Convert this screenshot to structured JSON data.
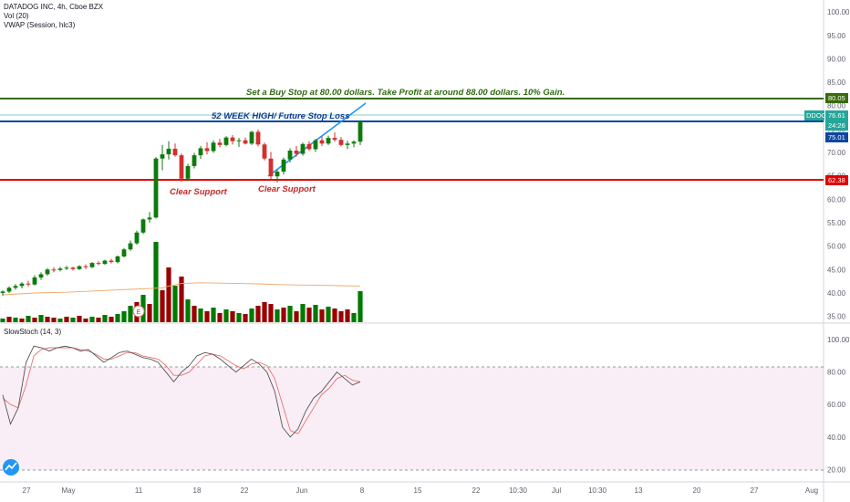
{
  "legend": {
    "title": "DATADOG INC, 4h, Cboe BZX",
    "vol": "Vol (20)",
    "vwap": "VWAP (Session, hlc3)",
    "stoch": "SlowStoch (14, 3)"
  },
  "colors": {
    "up": "#0e7a0d",
    "down": "#d32f2f",
    "up_vol": "#007a00",
    "down_vol": "#990000",
    "green_line": "#3a6b0a",
    "blue_line": "#0d47a1",
    "red_line": "#e00000",
    "trend": "#2196f3",
    "stoch_k": "#555555",
    "stoch_d": "#e57373"
  },
  "annotations": {
    "buy_stop": "Set a Buy Stop at 80.00 dollars. Take Profit at around 88.00 dollars. 10% Gain.",
    "high_52": "52 WEEK HIGH/ Future Stop Loss",
    "support_1": "Clear Support",
    "support_2": "Clear Support",
    "earnings_marker": "E"
  },
  "price_tags": {
    "green": "80.05",
    "ddog_label": "DDOG",
    "ddog_price": "76.61",
    "countdown": "24:26",
    "blue": "75.01",
    "red": "62.38"
  },
  "price_axis": [
    "100.00",
    "95.00",
    "90.00",
    "85.00",
    "80.00",
    "75.00",
    "70.00",
    "65.00",
    "60.00",
    "55.00",
    "50.00",
    "45.00",
    "40.00",
    "35.00"
  ],
  "stoch_axis": [
    "100.00",
    "80.00",
    "60.00",
    "40.00",
    "20.00"
  ],
  "x_axis": [
    "27",
    "May",
    "11",
    "18",
    "22",
    "Jun",
    "8",
    "15",
    "22",
    "10:30",
    "Jul",
    "10:30",
    "13",
    "20",
    "27",
    "Aug"
  ],
  "chart_data": {
    "type": "candlestick",
    "title": "DATADOG INC, 4h, Cboe BZX",
    "ylim": [
      32,
      101
    ],
    "levels": {
      "buy_stop": 80.05,
      "week52_high": 75.01,
      "support": 62.38,
      "last": 76.61
    },
    "trendline": [
      [
        63.5,
        75.0
      ],
      [
        80.0,
        77.0
      ]
    ],
    "candles": [
      [
        40.0,
        40.6,
        39.4,
        40.3
      ],
      [
        40.3,
        41.4,
        40.0,
        41.1
      ],
      [
        41.1,
        41.9,
        40.7,
        41.5
      ],
      [
        41.5,
        42.3,
        41.0,
        42.0
      ],
      [
        42.0,
        42.6,
        41.4,
        41.8
      ],
      [
        41.8,
        43.8,
        41.6,
        43.3
      ],
      [
        43.3,
        44.4,
        42.8,
        44.0
      ],
      [
        44.0,
        45.3,
        43.7,
        45.0
      ],
      [
        45.0,
        45.5,
        44.4,
        44.9
      ],
      [
        44.9,
        45.6,
        44.6,
        45.2
      ],
      [
        45.2,
        45.8,
        44.9,
        45.4
      ],
      [
        45.4,
        45.6,
        44.8,
        45.1
      ],
      [
        45.1,
        45.9,
        44.9,
        45.7
      ],
      [
        45.7,
        46.1,
        45.1,
        45.5
      ],
      [
        45.5,
        46.6,
        45.3,
        46.4
      ],
      [
        46.4,
        46.8,
        45.9,
        46.2
      ],
      [
        46.2,
        47.1,
        46.0,
        46.9
      ],
      [
        46.9,
        47.3,
        46.3,
        46.6
      ],
      [
        46.6,
        48.0,
        46.3,
        47.8
      ],
      [
        47.8,
        49.6,
        47.6,
        49.3
      ],
      [
        49.3,
        51.2,
        49.0,
        50.6
      ],
      [
        50.6,
        53.3,
        50.3,
        52.9
      ],
      [
        52.9,
        55.9,
        52.6,
        55.7
      ],
      [
        55.7,
        57.3,
        55.0,
        56.1
      ],
      [
        56.1,
        69.0,
        55.9,
        68.7
      ],
      [
        68.7,
        71.6,
        66.2,
        69.6
      ],
      [
        69.6,
        72.4,
        68.5,
        70.8
      ],
      [
        70.8,
        71.9,
        69.1,
        69.4
      ],
      [
        69.4,
        69.8,
        63.8,
        64.4
      ],
      [
        64.4,
        67.6,
        63.9,
        67.1
      ],
      [
        67.1,
        69.9,
        66.6,
        69.4
      ],
      [
        69.4,
        71.4,
        68.6,
        70.9
      ],
      [
        70.9,
        72.2,
        69.6,
        70.3
      ],
      [
        70.3,
        72.6,
        69.9,
        72.1
      ],
      [
        72.1,
        72.9,
        71.1,
        71.6
      ],
      [
        71.6,
        73.5,
        71.3,
        73.2
      ],
      [
        73.2,
        73.7,
        71.7,
        72.4
      ],
      [
        72.4,
        73.1,
        71.2,
        72.6
      ],
      [
        72.6,
        73.2,
        71.7,
        71.9
      ],
      [
        71.9,
        74.6,
        71.6,
        74.4
      ],
      [
        74.4,
        74.9,
        71.3,
        71.7
      ],
      [
        71.7,
        72.1,
        68.3,
        68.7
      ],
      [
        68.7,
        70.1,
        64.3,
        64.9
      ],
      [
        64.9,
        66.4,
        63.6,
        65.9
      ],
      [
        65.9,
        68.9,
        65.3,
        68.5
      ],
      [
        68.5,
        70.9,
        67.9,
        70.4
      ],
      [
        70.4,
        71.4,
        69.1,
        69.7
      ],
      [
        69.7,
        72.1,
        69.3,
        71.8
      ],
      [
        71.8,
        72.4,
        70.3,
        70.7
      ],
      [
        70.7,
        72.9,
        70.1,
        72.6
      ],
      [
        72.6,
        73.6,
        71.4,
        71.9
      ],
      [
        71.9,
        73.6,
        71.6,
        73.1
      ],
      [
        73.1,
        74.3,
        72.3,
        72.7
      ],
      [
        72.7,
        73.3,
        71.3,
        71.6
      ],
      [
        71.6,
        72.5,
        70.7,
        71.9
      ],
      [
        71.9,
        72.6,
        71.1,
        72.3
      ],
      [
        72.3,
        76.9,
        71.6,
        76.6
      ]
    ],
    "volume": [
      [
        4,
        1
      ],
      [
        6,
        0
      ],
      [
        5,
        1
      ],
      [
        4,
        0
      ],
      [
        7,
        1
      ],
      [
        5,
        0
      ],
      [
        8,
        1
      ],
      [
        6,
        0
      ],
      [
        5,
        0
      ],
      [
        4,
        1
      ],
      [
        6,
        0
      ],
      [
        5,
        1
      ],
      [
        7,
        0
      ],
      [
        4,
        0
      ],
      [
        6,
        1
      ],
      [
        5,
        0
      ],
      [
        8,
        1
      ],
      [
        6,
        0
      ],
      [
        9,
        1
      ],
      [
        12,
        1
      ],
      [
        18,
        1
      ],
      [
        22,
        0
      ],
      [
        30,
        1
      ],
      [
        20,
        0
      ],
      [
        88,
        1
      ],
      [
        35,
        0
      ],
      [
        60,
        0
      ],
      [
        40,
        1
      ],
      [
        50,
        0
      ],
      [
        25,
        1
      ],
      [
        18,
        0
      ],
      [
        15,
        1
      ],
      [
        12,
        0
      ],
      [
        16,
        1
      ],
      [
        10,
        0
      ],
      [
        14,
        1
      ],
      [
        12,
        0
      ],
      [
        10,
        1
      ],
      [
        9,
        0
      ],
      [
        15,
        1
      ],
      [
        18,
        0
      ],
      [
        22,
        0
      ],
      [
        20,
        0
      ],
      [
        14,
        1
      ],
      [
        16,
        0
      ],
      [
        18,
        1
      ],
      [
        12,
        0
      ],
      [
        20,
        1
      ],
      [
        16,
        0
      ],
      [
        19,
        1
      ],
      [
        14,
        0
      ],
      [
        17,
        1
      ],
      [
        15,
        0
      ],
      [
        12,
        0
      ],
      [
        14,
        0
      ],
      [
        10,
        1
      ],
      [
        34,
        1
      ]
    ],
    "vwap": [
      [
        0,
        42.5
      ],
      [
        5,
        43.0
      ],
      [
        10,
        43.2
      ],
      [
        15,
        43.6
      ],
      [
        20,
        44.0
      ],
      [
        25,
        44.4
      ],
      [
        26,
        44.9
      ],
      [
        28,
        45.6
      ],
      [
        31,
        45.8
      ],
      [
        34,
        45.7
      ],
      [
        37,
        45.6
      ],
      [
        40,
        45.5
      ],
      [
        43,
        45.3
      ],
      [
        46,
        45.2
      ],
      [
        50,
        45.1
      ],
      [
        53,
        45.0
      ],
      [
        56,
        44.9
      ]
    ],
    "vwap_range": [
      35,
      50
    ],
    "stoch_k": [
      66,
      48,
      58,
      86,
      96,
      95,
      93,
      95,
      96,
      95,
      93,
      94,
      90,
      86,
      89,
      92,
      93,
      91,
      89,
      88,
      86,
      80,
      74,
      80,
      84,
      90,
      92,
      91,
      88,
      84,
      80,
      84,
      88,
      85,
      80,
      68,
      46,
      40,
      45,
      56,
      64,
      68,
      74,
      80,
      76,
      72,
      74
    ],
    "stoch_d": [
      64,
      60,
      58,
      72,
      90,
      94,
      95,
      95,
      95,
      95,
      94,
      93,
      91,
      88,
      88,
      90,
      92,
      92,
      90,
      89,
      88,
      84,
      78,
      78,
      80,
      85,
      90,
      91,
      90,
      87,
      84,
      82,
      85,
      86,
      84,
      76,
      60,
      44,
      42,
      50,
      58,
      66,
      70,
      76,
      78,
      75,
      74
    ],
    "stoch_ylim": [
      14,
      104
    ]
  }
}
